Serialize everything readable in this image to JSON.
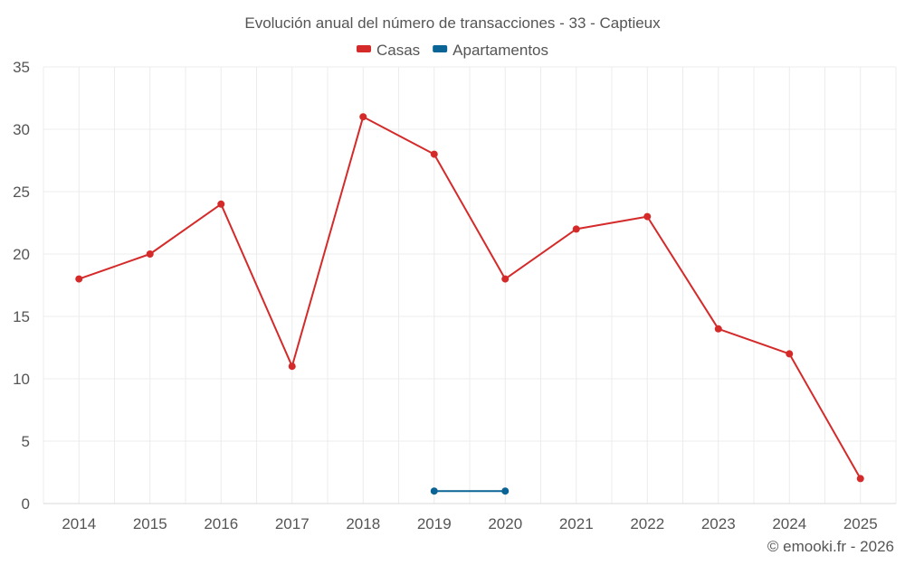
{
  "chart_data": {
    "type": "line",
    "title": "Evolución anual del número de transacciones - 33 - Captieux",
    "xlabel": "",
    "ylabel": "",
    "categories": [
      "2014",
      "2015",
      "2016",
      "2017",
      "2018",
      "2019",
      "2020",
      "2021",
      "2022",
      "2023",
      "2024",
      "2025"
    ],
    "ylim": [
      0,
      35
    ],
    "yticks": [
      0,
      5,
      10,
      15,
      20,
      25,
      30,
      35
    ],
    "grid": true,
    "legend_position": "top-center",
    "series": [
      {
        "name": "Casas",
        "color": "#d42a2a",
        "values": [
          18,
          20,
          24,
          11,
          31,
          28,
          18,
          22,
          23,
          14,
          12,
          2
        ]
      },
      {
        "name": "Apartamentos",
        "color": "#0a6496",
        "values": [
          null,
          null,
          null,
          null,
          null,
          1,
          1,
          null,
          null,
          null,
          null,
          null
        ]
      }
    ]
  },
  "credit": "© emooki.fr - 2026"
}
